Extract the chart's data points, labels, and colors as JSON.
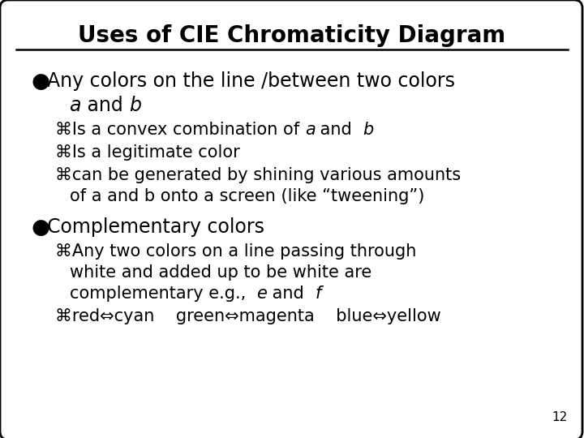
{
  "title": "Uses of CIE Chromaticity Diagram",
  "background_color": "#ffffff",
  "border_color": "#000000",
  "text_color": "#000000",
  "slide_number": "12",
  "bullet_sym": "●",
  "sub_sym": "⌘",
  "line1": "Any colors on the line /between two colors",
  "line2_pre": "  ",
  "line2_a": "a",
  "line2_mid": " and ",
  "line2_b": "b",
  "sub1_pre": "Is a convex combination of ",
  "sub1_a": "a",
  "sub1_mid": " and  ",
  "sub1_b": "b",
  "sub2": "Is a legitimate color",
  "sub3a": "can be generated by shining various amounts",
  "sub3b": "of a and b onto a screen (like “tweening”)",
  "b2_main": "Complementary colors",
  "sb1a": "Any two colors on a line passing through",
  "sb1b": "white and added up to be white are",
  "sb1c_pre": "complementary e.g.,  ",
  "sb1c_e": "e",
  "sb1c_mid": " and  ",
  "sb1c_f": "f",
  "sb2": "red⇔cyan    green⇔magenta    blue⇔yellow"
}
